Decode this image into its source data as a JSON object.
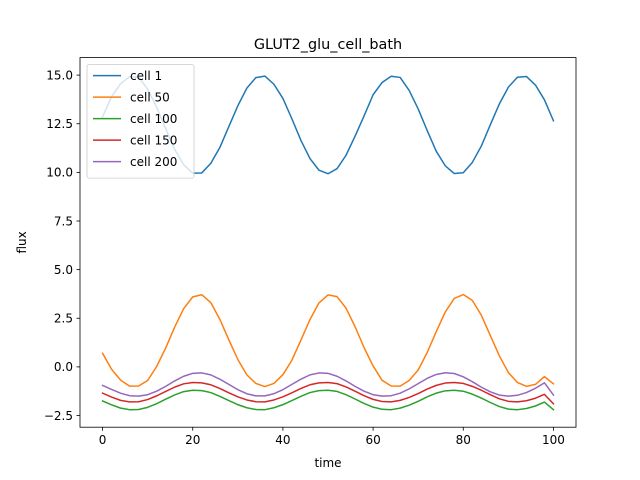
{
  "chart_data": {
    "type": "line",
    "title": "GLUT2_glu_cell_bath",
    "xlabel": "time",
    "ylabel": "flux",
    "xlim": [
      -5,
      105
    ],
    "ylim": [
      -3.1,
      15.9
    ],
    "xticks": [
      0,
      20,
      40,
      60,
      80,
      100
    ],
    "xtick_labels": [
      "0",
      "20",
      "40",
      "60",
      "80",
      "100"
    ],
    "yticks": [
      -2.5,
      0.0,
      2.5,
      5.0,
      7.5,
      10.0,
      12.5,
      15.0
    ],
    "ytick_labels": [
      "−2.5",
      "0.0",
      "2.5",
      "5.0",
      "7.5",
      "10.0",
      "12.5",
      "15.0"
    ],
    "grid": false,
    "legend_position": "top-left",
    "x": [
      0,
      2,
      4,
      6,
      8,
      10,
      12,
      14,
      16,
      18,
      20,
      22,
      24,
      26,
      28,
      30,
      32,
      34,
      36,
      38,
      40,
      42,
      44,
      46,
      48,
      50,
      52,
      54,
      56,
      58,
      60,
      62,
      64,
      66,
      68,
      70,
      72,
      74,
      76,
      78,
      80,
      82,
      84,
      86,
      88,
      90,
      92,
      94,
      96,
      98,
      100
    ],
    "series": [
      {
        "name": "cell 1",
        "color": "#1f77b4",
        "values": [
          12.85,
          13.89,
          14.56,
          14.92,
          14.89,
          14.28,
          13.35,
          12.25,
          11.18,
          10.39,
          9.96,
          9.97,
          10.46,
          11.27,
          12.35,
          13.42,
          14.33,
          14.87,
          14.95,
          14.53,
          13.8,
          12.75,
          11.64,
          10.71,
          10.11,
          9.93,
          10.19,
          10.88,
          11.86,
          12.9,
          13.99,
          14.62,
          14.94,
          14.88,
          14.21,
          13.26,
          12.15,
          11.09,
          10.34,
          9.94,
          9.98,
          10.51,
          11.35,
          12.45,
          13.52,
          14.38,
          14.89,
          14.93,
          14.49,
          13.73,
          12.65
        ]
      },
      {
        "name": "cell 50",
        "color": "#ff7f0e",
        "values": [
          0.7,
          -0.12,
          -0.68,
          -0.99,
          -0.98,
          -0.7,
          0.02,
          0.97,
          2.05,
          3.0,
          3.6,
          3.71,
          3.31,
          2.45,
          1.4,
          0.38,
          -0.41,
          -0.85,
          -1.01,
          -0.85,
          -0.4,
          0.35,
          1.38,
          2.43,
          3.29,
          3.7,
          3.61,
          3.02,
          2.07,
          0.99,
          0.05,
          -0.69,
          -0.98,
          -0.99,
          -0.7,
          -0.16,
          0.74,
          1.81,
          2.82,
          3.52,
          3.72,
          3.42,
          2.66,
          1.61,
          0.57,
          -0.29,
          -0.8,
          -1.0,
          -0.9,
          -0.5,
          -0.87
        ]
      },
      {
        "name": "cell 100",
        "color": "#2ca02c",
        "values": [
          -1.75,
          -1.95,
          -2.12,
          -2.2,
          -2.19,
          -2.08,
          -1.89,
          -1.66,
          -1.44,
          -1.27,
          -1.2,
          -1.22,
          -1.32,
          -1.51,
          -1.73,
          -1.94,
          -2.1,
          -2.19,
          -2.2,
          -2.1,
          -1.94,
          -1.73,
          -1.51,
          -1.32,
          -1.22,
          -1.2,
          -1.26,
          -1.43,
          -1.65,
          -1.88,
          -2.07,
          -2.18,
          -2.2,
          -2.12,
          -1.97,
          -1.77,
          -1.54,
          -1.35,
          -1.23,
          -1.2,
          -1.25,
          -1.4,
          -1.6,
          -1.83,
          -2.04,
          -2.17,
          -2.2,
          -2.14,
          -2.01,
          -1.81,
          -2.2
        ]
      },
      {
        "name": "cell 150",
        "color": "#d62728",
        "values": [
          -1.35,
          -1.55,
          -1.72,
          -1.8,
          -1.79,
          -1.68,
          -1.49,
          -1.26,
          -1.04,
          -0.87,
          -0.8,
          -0.82,
          -0.92,
          -1.11,
          -1.33,
          -1.54,
          -1.7,
          -1.79,
          -1.8,
          -1.7,
          -1.54,
          -1.33,
          -1.11,
          -0.92,
          -0.82,
          -0.8,
          -0.86,
          -1.03,
          -1.25,
          -1.48,
          -1.67,
          -1.78,
          -1.8,
          -1.72,
          -1.57,
          -1.37,
          -1.14,
          -0.95,
          -0.83,
          -0.8,
          -0.85,
          -1.0,
          -1.2,
          -1.43,
          -1.64,
          -1.77,
          -1.8,
          -1.74,
          -1.61,
          -1.41,
          -1.9
        ]
      },
      {
        "name": "cell 200",
        "color": "#9467bd",
        "values": [
          -0.95,
          -1.16,
          -1.35,
          -1.48,
          -1.5,
          -1.43,
          -1.25,
          -1.0,
          -0.72,
          -0.48,
          -0.33,
          -0.31,
          -0.41,
          -0.63,
          -0.9,
          -1.17,
          -1.38,
          -1.49,
          -1.49,
          -1.38,
          -1.17,
          -0.9,
          -0.63,
          -0.41,
          -0.31,
          -0.33,
          -0.48,
          -0.72,
          -1.0,
          -1.25,
          -1.43,
          -1.5,
          -1.48,
          -1.35,
          -1.13,
          -0.86,
          -0.59,
          -0.39,
          -0.3,
          -0.34,
          -0.51,
          -0.76,
          -1.04,
          -1.28,
          -1.45,
          -1.5,
          -1.46,
          -1.32,
          -1.1,
          -0.82,
          -1.45
        ]
      }
    ]
  }
}
